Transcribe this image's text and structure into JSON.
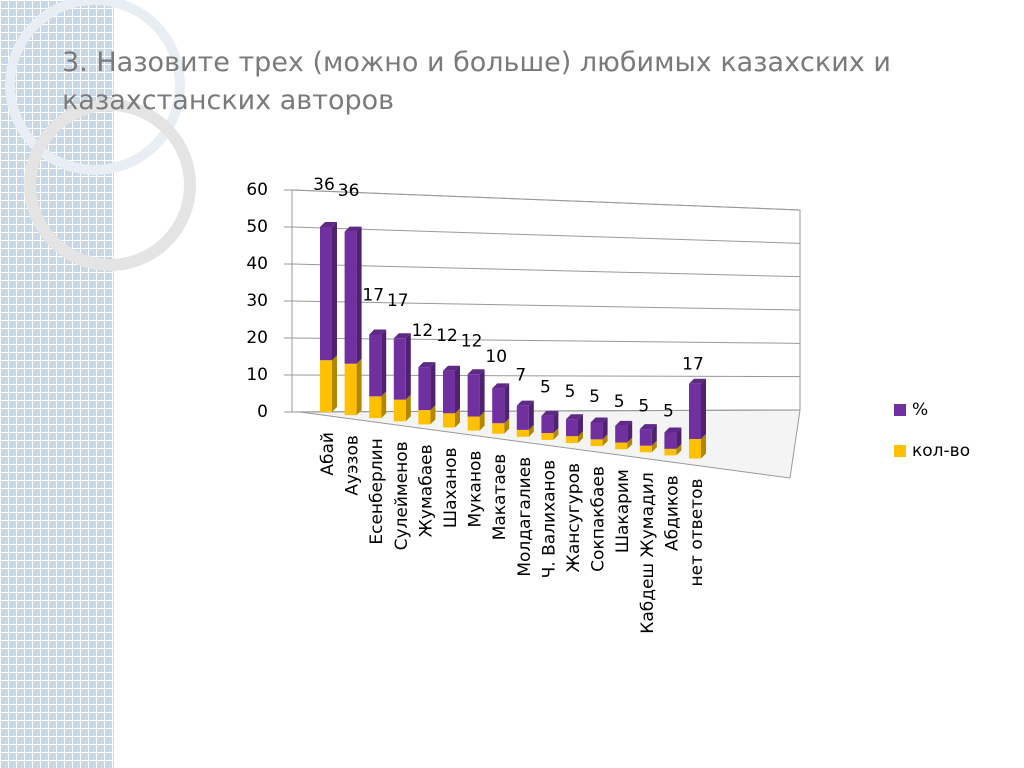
{
  "chart_data": {
    "type": "bar3d_stacked",
    "title": "3. Назовите трех (можно и больше) любимых казахских и казахстанских авторов",
    "categories": [
      "Абай",
      "Ауэзов",
      "Есенберлин",
      "Сулейменов",
      "Жумабаев",
      "Шаханов",
      "Муканов",
      "Макатаев",
      "Молдагалиев",
      "Ч. Валиханов",
      "Жансугуров",
      "Сокпакбаев",
      "Шакарим",
      "Кабдеш Жумадил",
      "Абдиков",
      "нет ответов"
    ],
    "series": [
      {
        "name": "%",
        "color": "#7030a0",
        "values": [
          36,
          36,
          17,
          17,
          12,
          12,
          12,
          10,
          7,
          5,
          5,
          5,
          5,
          5,
          5,
          17
        ]
      },
      {
        "name": "кол-во",
        "color": "#ffc000",
        "values": [
          14,
          14,
          6,
          6,
          4,
          4,
          4,
          3,
          2,
          2,
          2,
          2,
          2,
          2,
          2,
          6
        ]
      }
    ],
    "ylim": [
      0,
      60
    ],
    "yticks": [
      0,
      10,
      20,
      30,
      40,
      50,
      60
    ],
    "grid": true,
    "legend": "right"
  }
}
